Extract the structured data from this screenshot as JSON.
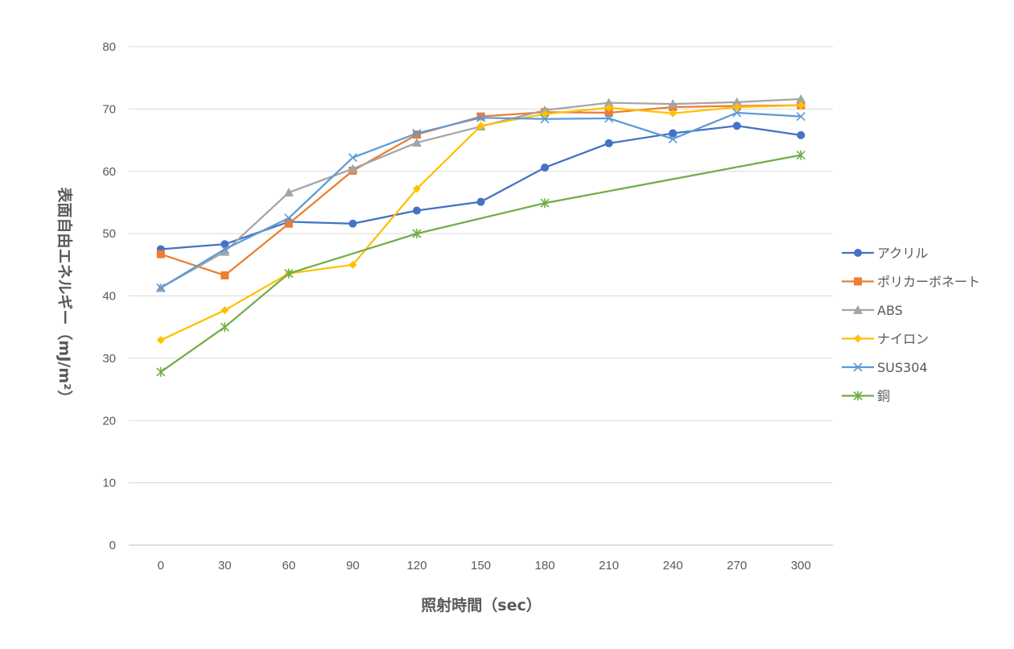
{
  "chart_data": {
    "type": "line",
    "title": "",
    "xlabel": "照射時間（sec）",
    "ylabel": "表面自由エネルギー（mJ/m²）",
    "x": [
      0,
      30,
      60,
      90,
      120,
      150,
      180,
      210,
      240,
      270,
      300
    ],
    "x_tick_labels": [
      "0",
      "30",
      "60",
      "90",
      "120",
      "150",
      "180",
      "210",
      "240",
      "270",
      "300"
    ],
    "y_tick_labels": [
      "0",
      "10",
      "20",
      "30",
      "40",
      "50",
      "60",
      "70",
      "80"
    ],
    "ylim": [
      0,
      80
    ],
    "grid": true,
    "legend_position": "right",
    "series": [
      {
        "name": "アクリル",
        "color": "#4472C4",
        "marker": "circle",
        "values": [
          47.5,
          48.3,
          51.9,
          51.6,
          53.7,
          55.1,
          60.6,
          64.5,
          66.1,
          67.3,
          65.8
        ]
      },
      {
        "name": "ポリカーボネート",
        "color": "#ED7D31",
        "marker": "square",
        "values": [
          46.7,
          43.3,
          51.6,
          60.1,
          65.9,
          68.8,
          69.5,
          69.4,
          70.3,
          70.5,
          70.6
        ]
      },
      {
        "name": "ABS",
        "color": "#A5A5A5",
        "marker": "triangle",
        "values": [
          41.3,
          47.1,
          56.6,
          60.4,
          64.6,
          67.2,
          69.8,
          71.0,
          70.8,
          71.1,
          71.6
        ]
      },
      {
        "name": "ナイロン",
        "color": "#FFC000",
        "marker": "diamond",
        "values": [
          32.9,
          37.7,
          43.6,
          45.0,
          57.2,
          67.3,
          69.2,
          70.2,
          69.3,
          70.3,
          70.6
        ]
      },
      {
        "name": "SUS304",
        "color": "#5B9BD5",
        "marker": "x",
        "values": [
          41.3,
          47.5,
          52.5,
          62.2,
          66.1,
          68.6,
          68.4,
          68.5,
          65.2,
          69.4,
          68.8
        ]
      },
      {
        "name": "銅",
        "color": "#70AD47",
        "marker": "star",
        "x": [
          0,
          30,
          60,
          120,
          180,
          300
        ],
        "values": [
          27.8,
          35.0,
          43.6,
          50.0,
          54.9,
          62.6
        ]
      }
    ]
  }
}
